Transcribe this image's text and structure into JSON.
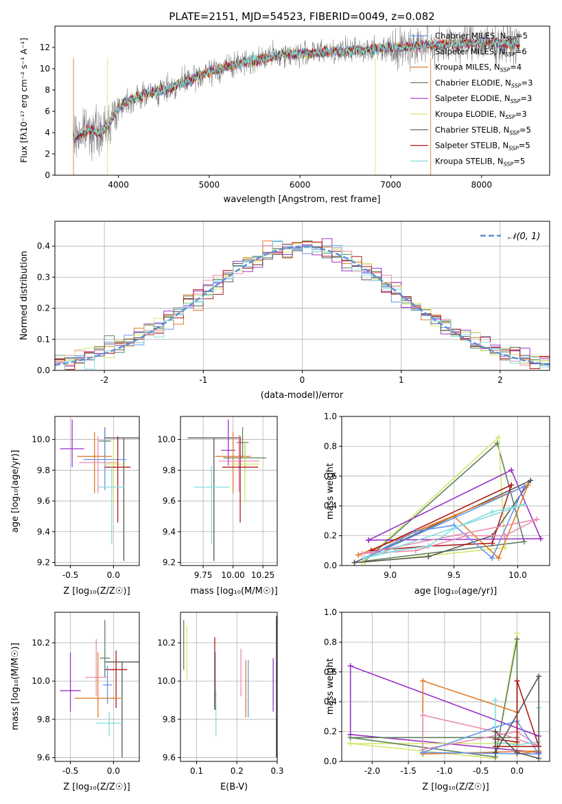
{
  "title": "PLATE=2151, MJD=54523, FIBERID=0049, z=0.082",
  "colors": {
    "Chabrier MILES": "#6495ed",
    "Salpeter MILES": "#e98bb0",
    "Kroupa MILES": "#e07b2a",
    "Chabrier ELODIE": "#5e7f5e",
    "Salpeter ELODIE": "#9b30c8",
    "Kroupa ELODIE": "#d4e86a",
    "Chabrier STELIB": "#555555",
    "Salpeter STELIB": "#b01818",
    "Kroupa STELIB": "#80dede"
  },
  "chart_data": [
    {
      "type": "line",
      "id": "spectrum",
      "xlabel": "wavelength [Angstrom, rest frame]",
      "ylabel": "Flux [fλ10⁻¹⁷ erg cm⁻² s⁻¹ A⁻¹]",
      "xlim": [
        3300,
        8750
      ],
      "ylim": [
        0,
        14
      ],
      "xticks": [
        4000,
        5000,
        6000,
        7000,
        8000
      ],
      "yticks": [
        0,
        2,
        4,
        6,
        8,
        10,
        12
      ],
      "grid": false,
      "legend": "top-right",
      "data_color": "#808080",
      "continuum": {
        "x": [
          3500,
          3600,
          3700,
          3800,
          3900,
          4000,
          4100,
          4300,
          4500,
          4800,
          5000,
          5200,
          5500,
          5800,
          6000,
          6300,
          6600,
          7000,
          7300,
          7600,
          8000,
          8400
        ],
        "y": [
          3.5,
          4.0,
          4.3,
          3.8,
          5.0,
          6.3,
          7.0,
          7.6,
          8.0,
          9.0,
          9.7,
          10.2,
          10.8,
          11.3,
          11.4,
          11.6,
          11.7,
          12.0,
          12.1,
          12.3,
          12.4,
          12.3
        ]
      },
      "series": [
        {
          "name": "Chabrier MILES, N_SSP=5"
        },
        {
          "name": "Salpeter MILES, N_SSP=6"
        },
        {
          "name": "Kroupa MILES, N_SSP=4"
        },
        {
          "name": "Chabrier ELODIE, N_SSP=3"
        },
        {
          "name": "Salpeter ELODIE, N_SSP=3"
        },
        {
          "name": "Kroupa ELODIE, N_SSP=3"
        },
        {
          "name": "Chabrier STELIB, N_SSP=5"
        },
        {
          "name": "Salpeter STELIB, N_SSP=5"
        },
        {
          "name": "Kroupa STELIB, N_SSP=5"
        }
      ],
      "legend_labels": [
        [
          "Chabrier MILES, N",
          "SSP",
          "=5"
        ],
        [
          "Salpeter MILES, N",
          "SSP",
          "=6"
        ],
        [
          "Kroupa MILES, N",
          "SSP",
          "=4"
        ],
        [
          "Chabrier ELODIE, N",
          "SSP",
          "=3"
        ],
        [
          "Salpeter ELODIE, N",
          "SSP",
          "=3"
        ],
        [
          "Kroupa ELODIE, N",
          "SSP",
          "=3"
        ],
        [
          "Chabrier STELIB, N",
          "SSP",
          "=5"
        ],
        [
          "Salpeter STELIB, N",
          "SSP",
          "=5"
        ],
        [
          "Kroupa STELIB, N",
          "SSP",
          "=5"
        ]
      ]
    },
    {
      "type": "histogram",
      "id": "residuals",
      "xlabel": "(data-model)/error",
      "ylabel": "Normed distribution",
      "xlim": [
        -2.5,
        2.5
      ],
      "ylim": [
        0,
        0.48
      ],
      "xticks": [
        -2,
        -1,
        0,
        1,
        2
      ],
      "yticks": [
        0.0,
        0.1,
        0.2,
        0.3,
        0.4
      ],
      "grid": true,
      "legend": "top-right",
      "bin_width": 0.1,
      "reference": {
        "label": "𝒩(0, 1)",
        "mean": 0,
        "sigma": 1,
        "color": "#5b8fd6"
      }
    },
    {
      "type": "errorbar",
      "id": "age-vs-Z",
      "xlabel": "Z [log₁₀(Z/Z☉)]",
      "ylabel": "age  [log₁₀(age/yr)]",
      "xlim": [
        -0.68,
        0.3
      ],
      "ylim": [
        9.18,
        10.15
      ],
      "xticks": [
        -0.5,
        0.0
      ],
      "yticks": [
        9.2,
        9.4,
        9.6,
        9.8,
        10.0
      ],
      "grid": true,
      "points": [
        {
          "x": 0.12,
          "y": 10.01,
          "xerr": 0.23,
          "yerr_lo": 0.8,
          "yerr_hi": 0.0,
          "color": "#555555"
        },
        {
          "x": -0.1,
          "y": 9.99,
          "xerr": 0.07,
          "yerr_lo": 0.1,
          "yerr_hi": 0.09,
          "color": "#5e7f5e"
        },
        {
          "x": -0.48,
          "y": 9.94,
          "xerr": 0.14,
          "yerr_lo": 0.12,
          "yerr_hi": 0.19,
          "color": "#9b30c8"
        },
        {
          "x": -0.22,
          "y": 9.89,
          "xerr": 0.2,
          "yerr_lo": 0.24,
          "yerr_hi": 0.16,
          "color": "#e07b2a"
        },
        {
          "x": -0.1,
          "y": 9.87,
          "xerr": 0.25,
          "yerr_lo": 0.2,
          "yerr_hi": 0.2,
          "color": "#6495ed"
        },
        {
          "x": -0.18,
          "y": 9.85,
          "xerr": 0.22,
          "yerr_lo": 0.2,
          "yerr_hi": 0.17,
          "color": "#e98bb0"
        },
        {
          "x": 0.0,
          "y": 9.84,
          "xerr": 0.12,
          "yerr_lo": 0.25,
          "yerr_hi": 0.15,
          "color": "#d4e86a"
        },
        {
          "x": 0.05,
          "y": 9.82,
          "xerr": 0.15,
          "yerr_lo": 0.36,
          "yerr_hi": 0.2,
          "color": "#b01818"
        },
        {
          "x": -0.02,
          "y": 9.69,
          "xerr": 0.15,
          "yerr_lo": 0.37,
          "yerr_hi": 0.14,
          "color": "#80dede"
        }
      ]
    },
    {
      "type": "errorbar",
      "id": "age-vs-mass",
      "xlabel": "mass [log₁₀(M/M☉)]",
      "ylabel": "",
      "xlim": [
        9.56,
        10.37
      ],
      "ylim": [
        9.18,
        10.15
      ],
      "xticks": [
        9.75,
        10.0,
        10.25
      ],
      "xtick_labels": [
        "9.75",
        "10.00",
        "10.25"
      ],
      "yticks": [
        9.2,
        9.4,
        9.6,
        9.8,
        10.0
      ],
      "grid": true,
      "points": [
        {
          "x": 9.84,
          "y": 10.01,
          "xerr": 0.22,
          "yerr_lo": 0.8,
          "yerr_hi": 0.0,
          "color": "#555555"
        },
        {
          "x": 10.08,
          "y": 9.98,
          "xerr": 0.05,
          "yerr_lo": 0.1,
          "yerr_hi": 0.1,
          "color": "#5e7f5e"
        },
        {
          "x": 9.96,
          "y": 9.93,
          "xerr": 0.06,
          "yerr_lo": 0.1,
          "yerr_hi": 0.2,
          "color": "#9b30c8"
        },
        {
          "x": 10.1,
          "y": 9.88,
          "xerr": 0.18,
          "yerr_lo": 0.1,
          "yerr_hi": 0.1,
          "color": "#5e7f5e"
        },
        {
          "x": 10.0,
          "y": 9.89,
          "xerr": 0.15,
          "yerr_lo": 0.24,
          "yerr_hi": 0.16,
          "color": "#e07b2a"
        },
        {
          "x": 10.05,
          "y": 9.86,
          "xerr": 0.17,
          "yerr_lo": 0.2,
          "yerr_hi": 0.17,
          "color": "#e98bb0"
        },
        {
          "x": 10.1,
          "y": 9.84,
          "xerr": 0.12,
          "yerr_lo": 0.25,
          "yerr_hi": 0.15,
          "color": "#d4e86a"
        },
        {
          "x": 10.06,
          "y": 9.82,
          "xerr": 0.15,
          "yerr_lo": 0.36,
          "yerr_hi": 0.2,
          "color": "#b01818"
        },
        {
          "x": 9.82,
          "y": 9.69,
          "xerr": 0.15,
          "yerr_lo": 0.37,
          "yerr_hi": 0.14,
          "color": "#80dede"
        }
      ]
    },
    {
      "type": "line",
      "id": "weight-vs-age",
      "xlabel": "age  [log₁₀(age/yr)]",
      "ylabel": "mass weight",
      "xlim": [
        8.62,
        10.25
      ],
      "ylim": [
        0,
        1
      ],
      "xticks": [
        9.0,
        9.5,
        10.0
      ],
      "yticks": [
        0.0,
        0.2,
        0.4,
        0.6,
        0.8,
        1.0
      ],
      "grid": true,
      "series": [
        {
          "color": "#5e7f5e",
          "x": [
            8.8,
            9.84,
            10.05,
            8.8
          ],
          "y": [
            0.03,
            0.82,
            0.16,
            0.03
          ]
        },
        {
          "color": "#d4e86a",
          "x": [
            8.78,
            9.85,
            9.9,
            8.78
          ],
          "y": [
            0.02,
            0.86,
            0.12,
            0.02
          ]
        },
        {
          "color": "#9b30c8",
          "x": [
            8.83,
            9.95,
            10.18,
            8.83
          ],
          "y": [
            0.17,
            0.64,
            0.18,
            0.17
          ]
        },
        {
          "color": "#555555",
          "x": [
            8.72,
            9.3,
            9.8,
            10.1,
            8.72
          ],
          "y": [
            0.02,
            0.06,
            0.2,
            0.57,
            0.02
          ]
        },
        {
          "color": "#e07b2a",
          "x": [
            8.75,
            9.5,
            9.85,
            10.08,
            8.75
          ],
          "y": [
            0.07,
            0.33,
            0.05,
            0.54,
            0.07
          ]
        },
        {
          "color": "#b01818",
          "x": [
            8.85,
            9.3,
            9.8,
            9.95,
            8.85
          ],
          "y": [
            0.1,
            0.13,
            0.15,
            0.54,
            0.1
          ]
        },
        {
          "color": "#6495ed",
          "x": [
            8.8,
            9.2,
            9.5,
            9.8,
            10.05,
            8.8
          ],
          "y": [
            0.05,
            0.23,
            0.27,
            0.05,
            0.53,
            0.05
          ]
        },
        {
          "color": "#e98bb0",
          "x": [
            8.78,
            9.2,
            9.6,
            9.9,
            10.15,
            8.78
          ],
          "y": [
            0.08,
            0.1,
            0.2,
            0.2,
            0.31,
            0.08
          ]
        },
        {
          "color": "#80dede",
          "x": [
            8.8,
            9.05,
            9.3,
            9.5,
            9.8,
            10.05,
            8.8
          ],
          "y": [
            0.05,
            0.1,
            0.13,
            0.25,
            0.36,
            0.41,
            0.05
          ]
        }
      ]
    },
    {
      "type": "errorbar",
      "id": "mass-vs-Z",
      "xlabel": "Z [log₁₀(Z/Z☉)]",
      "ylabel": "mass [log₁₀(M/M☉)]",
      "xlim": [
        -0.68,
        0.3
      ],
      "ylim": [
        9.58,
        10.36
      ],
      "xticks": [
        -0.5,
        0.0
      ],
      "yticks": [
        9.6,
        9.8,
        10.0,
        10.2
      ],
      "grid": true,
      "points": [
        {
          "x": 0.1,
          "y": 10.1,
          "xerr": 0.2,
          "yerr_lo": 0.5,
          "yerr_hi": 0.0,
          "color": "#555555"
        },
        {
          "x": -0.1,
          "y": 10.12,
          "xerr": 0.06,
          "yerr_lo": 0.1,
          "yerr_hi": 0.2,
          "color": "#5e7f5e"
        },
        {
          "x": 0.03,
          "y": 10.06,
          "xerr": 0.13,
          "yerr_lo": 0.2,
          "yerr_hi": 0.1,
          "color": "#b01818"
        },
        {
          "x": -0.2,
          "y": 10.02,
          "xerr": 0.13,
          "yerr_lo": 0.1,
          "yerr_hi": 0.2,
          "color": "#e98bb0"
        },
        {
          "x": -0.5,
          "y": 9.95,
          "xerr": 0.12,
          "yerr_lo": 0.11,
          "yerr_hi": 0.2,
          "color": "#9b30c8"
        },
        {
          "x": -0.18,
          "y": 9.91,
          "xerr": 0.27,
          "yerr_lo": 0.1,
          "yerr_hi": 0.24,
          "color": "#e07b2a"
        },
        {
          "x": -0.07,
          "y": 9.98,
          "xerr": 0.05,
          "yerr_lo": 0.1,
          "yerr_hi": 0.1,
          "color": "#6495ed"
        },
        {
          "x": -0.05,
          "y": 9.78,
          "xerr": 0.15,
          "yerr_lo": 0.07,
          "yerr_hi": 0.06,
          "color": "#80dede"
        }
      ]
    },
    {
      "type": "errorbar",
      "id": "mass-vs-ebv",
      "xlabel": "E(B-V)",
      "ylabel": "",
      "xlim": [
        0.06,
        0.3
      ],
      "ylim": [
        9.58,
        10.36
      ],
      "xticks": [
        0.1,
        0.2,
        0.3
      ],
      "yticks": [
        9.6,
        9.8,
        10.0,
        10.2
      ],
      "grid": true,
      "points": [
        {
          "x": 0.068,
          "y": 10.2,
          "yerr_lo": 0.14,
          "yerr_hi": 0.12,
          "color": "#5e7f5e"
        },
        {
          "x": 0.076,
          "y": 10.15,
          "yerr_lo": 0.14,
          "yerr_hi": 0.14,
          "color": "#d4e86a"
        },
        {
          "x": 0.145,
          "y": 10.05,
          "yerr_lo": 0.2,
          "yerr_hi": 0.18,
          "color": "#b01818"
        },
        {
          "x": 0.146,
          "y": 10.0,
          "yerr_lo": 0.15,
          "yerr_hi": 0.15,
          "color": "#555555"
        },
        {
          "x": 0.148,
          "y": 9.83,
          "yerr_lo": 0.12,
          "yerr_hi": 0.12,
          "color": "#80dede"
        },
        {
          "x": 0.21,
          "y": 10.02,
          "yerr_lo": 0.1,
          "yerr_hi": 0.15,
          "color": "#e98bb0"
        },
        {
          "x": 0.222,
          "y": 9.96,
          "yerr_lo": 0.15,
          "yerr_hi": 0.15,
          "color": "#e07b2a"
        },
        {
          "x": 0.228,
          "y": 9.96,
          "yerr_lo": 0.15,
          "yerr_hi": 0.15,
          "color": "#6495ed"
        },
        {
          "x": 0.29,
          "y": 9.99,
          "yerr_lo": 0.15,
          "yerr_hi": 0.13,
          "color": "#9b30c8"
        },
        {
          "x": 0.298,
          "y": 9.97,
          "yerr_lo": 0.37,
          "yerr_hi": 0.37,
          "color": "#555555"
        }
      ]
    },
    {
      "type": "line",
      "id": "weight-vs-Z",
      "xlabel": "Z [log₁₀(Z/Z☉)]",
      "ylabel": "mass weight",
      "xlim": [
        -2.42,
        0.45
      ],
      "ylim": [
        0,
        1
      ],
      "xticks": [
        -2.0,
        -1.5,
        -1.0,
        -0.5,
        0.0
      ],
      "yticks": [
        0.0,
        0.2,
        0.4,
        0.6,
        0.8,
        1.0
      ],
      "grid": true,
      "series": [
        {
          "color": "#9b30c8",
          "x": [
            -2.3,
            -2.3,
            0.3,
            0.3,
            -2.3
          ],
          "y": [
            0.18,
            0.64,
            0.17,
            0.06,
            0.18
          ]
        },
        {
          "color": "#d4e86a",
          "x": [
            -2.3,
            -0.3,
            0.0,
            0.0,
            -2.3
          ],
          "y": [
            0.12,
            0.02,
            0.86,
            0.12,
            0.12
          ]
        },
        {
          "color": "#5e7f5e",
          "x": [
            -2.3,
            -0.3,
            0.0,
            0.0,
            -2.3
          ],
          "y": [
            0.16,
            0.03,
            0.82,
            0.16,
            0.16
          ]
        },
        {
          "color": "#e07b2a",
          "x": [
            -1.3,
            -1.3,
            0.0,
            0.0,
            0.3,
            -1.3
          ],
          "y": [
            0.05,
            0.54,
            0.33,
            0.05,
            0.07,
            0.05
          ]
        },
        {
          "color": "#e98bb0",
          "x": [
            -1.3,
            -1.3,
            -0.3,
            0.3,
            0.0,
            -1.3
          ],
          "y": [
            0.08,
            0.31,
            0.2,
            0.1,
            0.2,
            0.08
          ]
        },
        {
          "color": "#6495ed",
          "x": [
            -1.3,
            -0.3,
            0.0,
            0.3,
            0.3,
            -1.3
          ],
          "y": [
            0.06,
            0.23,
            0.27,
            0.05,
            0.05,
            0.06
          ]
        },
        {
          "color": "#80dede",
          "x": [
            -0.3,
            -0.3,
            0.0,
            0.3,
            0.3
          ],
          "y": [
            0.41,
            0.13,
            0.11,
            0.13,
            0.36
          ]
        },
        {
          "color": "#b01818",
          "x": [
            -0.3,
            -0.3,
            0.0,
            0.0,
            0.3,
            -0.3
          ],
          "y": [
            0.1,
            0.15,
            0.13,
            0.54,
            0.1,
            0.1
          ]
        },
        {
          "color": "#555555",
          "x": [
            -0.3,
            -0.3,
            0.0,
            0.3,
            0.3,
            -0.3
          ],
          "y": [
            0.06,
            0.2,
            0.06,
            0.02,
            0.57,
            0.06
          ]
        }
      ]
    }
  ]
}
